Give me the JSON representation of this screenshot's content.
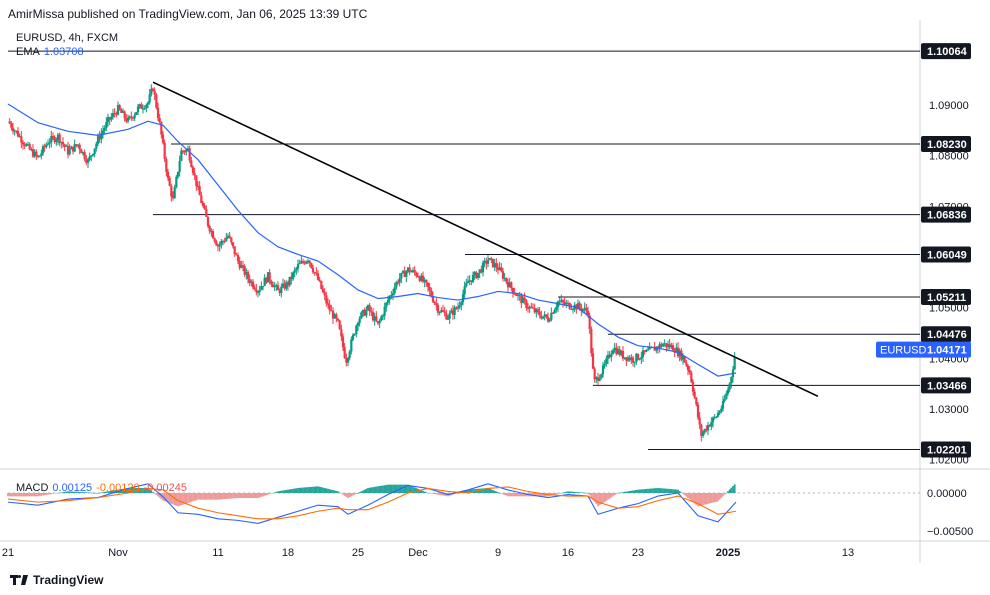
{
  "header": {
    "published": "AmirMissa published on TradingView.com, Jan 06, 2025 13:39 UTC",
    "symbol_line": "EURUSD, 4h, FXCM",
    "ema_label": "EMA",
    "ema_value": "1.03708"
  },
  "macd": {
    "label": "MACD",
    "v1": "0.00125",
    "v2": "-0.00120",
    "v3": "-0.00245",
    "axis_labels": [
      "0.00000",
      "−0.00500"
    ],
    "axis_values": [
      0.0,
      -0.005
    ]
  },
  "brand": "TradingView",
  "colors": {
    "up": "#089981",
    "down": "#f23645",
    "ema": "#2962ff",
    "signal": "#ff6d00",
    "trendline": "#000000"
  },
  "chart_data": {
    "type": "candlestick",
    "symbol": "EURUSD",
    "timeframe": "4h",
    "ylim": [
      1.018,
      1.105
    ],
    "price_axis_labels": [
      "1.09000",
      "1.08000",
      "1.07000",
      "1.05000",
      "1.04000",
      "1.03000",
      "1.02000"
    ],
    "price_axis_values": [
      1.09,
      1.08,
      1.07,
      1.05,
      1.04,
      1.03,
      1.02
    ],
    "x_axis_labels": [
      {
        "label": "21",
        "day": -11
      },
      {
        "label": "Nov",
        "day": 0
      },
      {
        "label": "11",
        "day": 10
      },
      {
        "label": "18",
        "day": 17
      },
      {
        "label": "25",
        "day": 24
      },
      {
        "label": "Dec",
        "day": 30
      },
      {
        "label": "9",
        "day": 38
      },
      {
        "label": "16",
        "day": 45
      },
      {
        "label": "23",
        "day": 52
      },
      {
        "label": "2025",
        "day": 61
      },
      {
        "label": "13",
        "day": 73
      }
    ],
    "horizontal_levels": [
      {
        "price": 1.10064,
        "label": "1.10064",
        "from_day": -11
      },
      {
        "price": 1.0823,
        "label": "1.08230",
        "from_day": 5.3
      },
      {
        "price": 1.06836,
        "label": "1.06836",
        "from_day": 3.5
      },
      {
        "price": 1.06049,
        "label": "1.06049",
        "from_day": 34.7
      },
      {
        "price": 1.05211,
        "label": "1.05211",
        "from_day": 44.0
      },
      {
        "price": 1.04476,
        "label": "1.04476",
        "from_day": 49.0
      },
      {
        "price": 1.03466,
        "label": "1.03466",
        "from_day": 47.5
      },
      {
        "price": 1.02201,
        "label": "1.02201",
        "from_day": 53.0
      }
    ],
    "trendline": {
      "from": {
        "day": 3.5,
        "price": 1.0945
      },
      "to": {
        "day": 70.0,
        "price": 1.0325
      }
    },
    "current_price": {
      "symbol": "EURUSD",
      "label": "1.04171",
      "price": 1.04171
    },
    "price_path": [
      {
        "day": -11,
        "price": 1.0868
      },
      {
        "day": -10,
        "price": 1.0842
      },
      {
        "day": -9,
        "price": 1.0815
      },
      {
        "day": -8,
        "price": 1.0795
      },
      {
        "day": -7,
        "price": 1.0828
      },
      {
        "day": -6,
        "price": 1.0838
      },
      {
        "day": -5,
        "price": 1.0808
      },
      {
        "day": -4,
        "price": 1.0822
      },
      {
        "day": -3,
        "price": 1.0788
      },
      {
        "day": -2,
        "price": 1.0832
      },
      {
        "day": -1,
        "price": 1.0868
      },
      {
        "day": 0,
        "price": 1.0892
      },
      {
        "day": 1,
        "price": 1.0868
      },
      {
        "day": 2,
        "price": 1.0893
      },
      {
        "day": 3,
        "price": 1.0905
      },
      {
        "day": 3.5,
        "price": 1.0935
      },
      {
        "day": 4.2,
        "price": 1.0858
      },
      {
        "day": 5,
        "price": 1.0752
      },
      {
        "day": 5.5,
        "price": 1.0712
      },
      {
        "day": 6.3,
        "price": 1.0808
      },
      {
        "day": 7,
        "price": 1.0812
      },
      {
        "day": 8,
        "price": 1.0732
      },
      {
        "day": 9,
        "price": 1.0665
      },
      {
        "day": 10,
        "price": 1.0622
      },
      {
        "day": 11,
        "price": 1.0642
      },
      {
        "day": 12,
        "price": 1.0592
      },
      {
        "day": 13,
        "price": 1.0558
      },
      {
        "day": 14,
        "price": 1.0535
      },
      {
        "day": 15,
        "price": 1.0562
      },
      {
        "day": 16,
        "price": 1.0532
      },
      {
        "day": 17,
        "price": 1.0548
      },
      {
        "day": 18,
        "price": 1.0582
      },
      {
        "day": 19,
        "price": 1.0598
      },
      {
        "day": 20,
        "price": 1.0555
      },
      {
        "day": 21,
        "price": 1.0502
      },
      {
        "day": 22,
        "price": 1.0468
      },
      {
        "day": 22.8,
        "price": 1.0395
      },
      {
        "day": 23.5,
        "price": 1.0442
      },
      {
        "day": 24,
        "price": 1.0478
      },
      {
        "day": 25,
        "price": 1.0498
      },
      {
        "day": 26,
        "price": 1.0465
      },
      {
        "day": 27,
        "price": 1.0515
      },
      {
        "day": 28,
        "price": 1.0555
      },
      {
        "day": 29,
        "price": 1.0575
      },
      {
        "day": 30,
        "price": 1.0565
      },
      {
        "day": 31,
        "price": 1.0538
      },
      {
        "day": 32,
        "price": 1.0498
      },
      {
        "day": 33,
        "price": 1.0482
      },
      {
        "day": 34,
        "price": 1.0502
      },
      {
        "day": 35,
        "price": 1.0552
      },
      {
        "day": 36,
        "price": 1.0568
      },
      {
        "day": 37,
        "price": 1.0595
      },
      {
        "day": 38,
        "price": 1.0578
      },
      {
        "day": 39,
        "price": 1.0548
      },
      {
        "day": 40,
        "price": 1.0522
      },
      {
        "day": 41,
        "price": 1.0502
      },
      {
        "day": 42,
        "price": 1.0488
      },
      {
        "day": 43,
        "price": 1.0478
      },
      {
        "day": 44,
        "price": 1.0512
      },
      {
        "day": 45,
        "price": 1.0505
      },
      {
        "day": 46,
        "price": 1.0502
      },
      {
        "day": 47,
        "price": 1.0492
      },
      {
        "day": 47.6,
        "price": 1.0352
      },
      {
        "day": 48.5,
        "price": 1.0378
      },
      {
        "day": 49.5,
        "price": 1.0422
      },
      {
        "day": 50.5,
        "price": 1.0405
      },
      {
        "day": 51.5,
        "price": 1.0398
      },
      {
        "day": 52.5,
        "price": 1.0408
      },
      {
        "day": 53.5,
        "price": 1.0418
      },
      {
        "day": 54.5,
        "price": 1.0428
      },
      {
        "day": 55.5,
        "price": 1.0422
      },
      {
        "day": 56.5,
        "price": 1.0402
      },
      {
        "day": 57.2,
        "price": 1.0372
      },
      {
        "day": 57.8,
        "price": 1.0308
      },
      {
        "day": 58.3,
        "price": 1.0248
      },
      {
        "day": 59,
        "price": 1.0268
      },
      {
        "day": 59.8,
        "price": 1.0285
      },
      {
        "day": 60.5,
        "price": 1.0308
      },
      {
        "day": 61.2,
        "price": 1.0352
      },
      {
        "day": 61.8,
        "price": 1.0417
      }
    ],
    "ema_path": [
      {
        "day": -11,
        "price": 1.0902
      },
      {
        "day": -8,
        "price": 1.0865
      },
      {
        "day": -5,
        "price": 1.0848
      },
      {
        "day": -2,
        "price": 1.084
      },
      {
        "day": 1,
        "price": 1.0852
      },
      {
        "day": 3,
        "price": 1.0868
      },
      {
        "day": 4.5,
        "price": 1.086
      },
      {
        "day": 6,
        "price": 1.0828
      },
      {
        "day": 8,
        "price": 1.0792
      },
      {
        "day": 10,
        "price": 1.0742
      },
      {
        "day": 12,
        "price": 1.0692
      },
      {
        "day": 14,
        "price": 1.0648
      },
      {
        "day": 16,
        "price": 1.062
      },
      {
        "day": 18,
        "price": 1.0605
      },
      {
        "day": 20,
        "price": 1.0592
      },
      {
        "day": 22,
        "price": 1.0565
      },
      {
        "day": 24,
        "price": 1.0535
      },
      {
        "day": 26,
        "price": 1.0518
      },
      {
        "day": 28,
        "price": 1.0522
      },
      {
        "day": 30,
        "price": 1.0528
      },
      {
        "day": 32,
        "price": 1.052
      },
      {
        "day": 34,
        "price": 1.0515
      },
      {
        "day": 36,
        "price": 1.0522
      },
      {
        "day": 38,
        "price": 1.0532
      },
      {
        "day": 40,
        "price": 1.0528
      },
      {
        "day": 42,
        "price": 1.0515
      },
      {
        "day": 44,
        "price": 1.0508
      },
      {
        "day": 46,
        "price": 1.05
      },
      {
        "day": 48,
        "price": 1.0468
      },
      {
        "day": 50,
        "price": 1.0442
      },
      {
        "day": 52,
        "price": 1.0425
      },
      {
        "day": 54,
        "price": 1.042
      },
      {
        "day": 56,
        "price": 1.0412
      },
      {
        "day": 58,
        "price": 1.0388
      },
      {
        "day": 60,
        "price": 1.0365
      },
      {
        "day": 61.8,
        "price": 1.0371
      }
    ],
    "macd_line": [
      {
        "day": -11,
        "value": -0.0012
      },
      {
        "day": -8,
        "value": -0.0016
      },
      {
        "day": -5,
        "value": -0.0008
      },
      {
        "day": -2,
        "value": -0.0006
      },
      {
        "day": 1,
        "value": 0.0006
      },
      {
        "day": 3,
        "value": 0.0012
      },
      {
        "day": 4.5,
        "value": -0.0005
      },
      {
        "day": 6,
        "value": -0.0026
      },
      {
        "day": 8,
        "value": -0.0028
      },
      {
        "day": 10,
        "value": -0.0034
      },
      {
        "day": 12,
        "value": -0.0036
      },
      {
        "day": 14,
        "value": -0.004
      },
      {
        "day": 16,
        "value": -0.0032
      },
      {
        "day": 18,
        "value": -0.0024
      },
      {
        "day": 20,
        "value": -0.0016
      },
      {
        "day": 22,
        "value": -0.0018
      },
      {
        "day": 23,
        "value": -0.0028
      },
      {
        "day": 25,
        "value": -0.0016
      },
      {
        "day": 27,
        "value": -0.0002
      },
      {
        "day": 29,
        "value": 0.001
      },
      {
        "day": 31,
        "value": 0.0006
      },
      {
        "day": 33,
        "value": -0.0002
      },
      {
        "day": 35,
        "value": 0.0004
      },
      {
        "day": 37,
        "value": 0.0012
      },
      {
        "day": 39,
        "value": 0.0004
      },
      {
        "day": 41,
        "value": -0.0002
      },
      {
        "day": 43,
        "value": -0.0006
      },
      {
        "day": 45,
        "value": -0.0002
      },
      {
        "day": 47,
        "value": -0.0004
      },
      {
        "day": 48,
        "value": -0.0028
      },
      {
        "day": 50,
        "value": -0.002
      },
      {
        "day": 52,
        "value": -0.0014
      },
      {
        "day": 54,
        "value": -0.0004
      },
      {
        "day": 56,
        "value": 0.0
      },
      {
        "day": 58,
        "value": -0.003
      },
      {
        "day": 60,
        "value": -0.0038
      },
      {
        "day": 61.8,
        "value": -0.0012
      }
    ],
    "signal_line": [
      {
        "day": -11,
        "value": -0.0008
      },
      {
        "day": -8,
        "value": -0.0012
      },
      {
        "day": -5,
        "value": -0.001
      },
      {
        "day": -2,
        "value": -0.0006
      },
      {
        "day": 1,
        "value": 0.0
      },
      {
        "day": 3,
        "value": 0.0006
      },
      {
        "day": 4.5,
        "value": 0.0004
      },
      {
        "day": 6,
        "value": -0.001
      },
      {
        "day": 8,
        "value": -0.002
      },
      {
        "day": 10,
        "value": -0.0026
      },
      {
        "day": 12,
        "value": -0.003
      },
      {
        "day": 14,
        "value": -0.0034
      },
      {
        "day": 16,
        "value": -0.0034
      },
      {
        "day": 18,
        "value": -0.003
      },
      {
        "day": 20,
        "value": -0.0024
      },
      {
        "day": 22,
        "value": -0.002
      },
      {
        "day": 23,
        "value": -0.0022
      },
      {
        "day": 25,
        "value": -0.0022
      },
      {
        "day": 27,
        "value": -0.0012
      },
      {
        "day": 29,
        "value": 0.0
      },
      {
        "day": 31,
        "value": 0.0006
      },
      {
        "day": 33,
        "value": 0.0002
      },
      {
        "day": 35,
        "value": 0.0
      },
      {
        "day": 37,
        "value": 0.0006
      },
      {
        "day": 39,
        "value": 0.0008
      },
      {
        "day": 41,
        "value": 0.0002
      },
      {
        "day": 43,
        "value": -0.0002
      },
      {
        "day": 45,
        "value": -0.0004
      },
      {
        "day": 47,
        "value": -0.0004
      },
      {
        "day": 48,
        "value": -0.0012
      },
      {
        "day": 50,
        "value": -0.002
      },
      {
        "day": 52,
        "value": -0.0018
      },
      {
        "day": 54,
        "value": -0.001
      },
      {
        "day": 56,
        "value": -0.0004
      },
      {
        "day": 58,
        "value": -0.0014
      },
      {
        "day": 60,
        "value": -0.0028
      },
      {
        "day": 61.8,
        "value": -0.0024
      }
    ]
  }
}
